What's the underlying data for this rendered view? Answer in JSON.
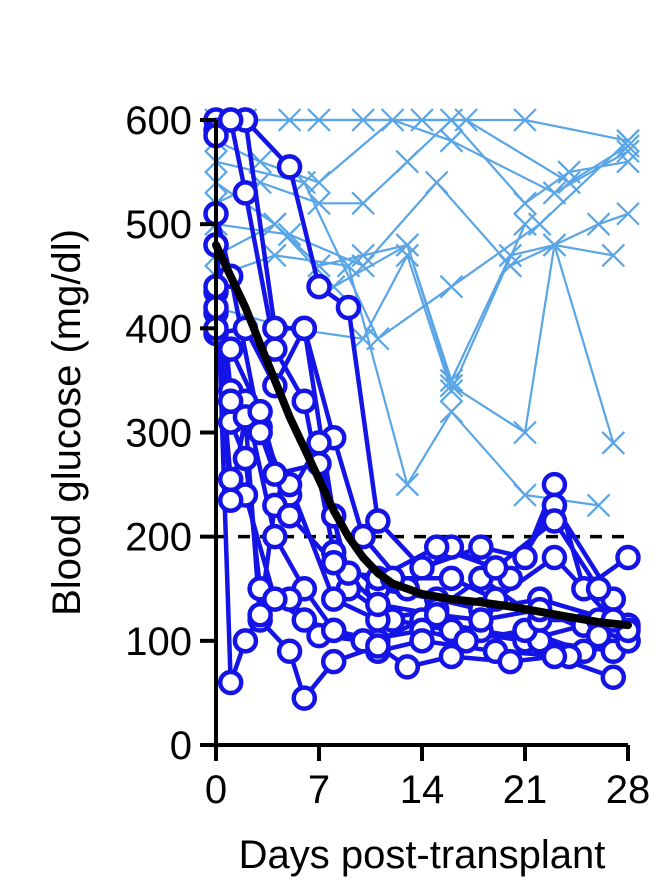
{
  "chart_data": {
    "type": "line",
    "xlabel": "Days post-transplant",
    "ylabel": "Blood glucose (mg/dl)",
    "xlim": [
      0,
      28
    ],
    "ylim": [
      0,
      600
    ],
    "xticks": [
      0,
      7,
      14,
      21,
      28
    ],
    "yticks": [
      0,
      100,
      200,
      300,
      400,
      500,
      600
    ],
    "threshold": 200,
    "colors": {
      "non_reversed": "#5aa5e6",
      "reversed": "#1414e6",
      "mean": "#000000",
      "threshold": "#000000"
    },
    "non_reversed_series": [
      [
        [
          0,
          600
        ],
        [
          7,
          600
        ],
        [
          14,
          600
        ],
        [
          21,
          600
        ],
        [
          28,
          580
        ]
      ],
      [
        [
          0,
          590
        ],
        [
          2,
          600
        ],
        [
          5,
          600
        ],
        [
          10,
          600
        ],
        [
          17,
          600
        ],
        [
          24,
          540
        ],
        [
          28,
          575
        ]
      ],
      [
        [
          0,
          580
        ],
        [
          3,
          560
        ],
        [
          7,
          540
        ],
        [
          12,
          600
        ],
        [
          16,
          580
        ],
        [
          23,
          530
        ],
        [
          28,
          570
        ]
      ],
      [
        [
          0,
          520
        ],
        [
          3,
          540
        ],
        [
          7,
          520
        ],
        [
          10,
          520
        ],
        [
          13,
          560
        ],
        [
          16,
          600
        ],
        [
          21,
          520
        ],
        [
          24,
          550
        ],
        [
          28,
          560
        ]
      ],
      [
        [
          0,
          470
        ],
        [
          4,
          500
        ],
        [
          7,
          460
        ],
        [
          10,
          470
        ],
        [
          13,
          480
        ],
        [
          16,
          350
        ],
        [
          20,
          470
        ],
        [
          23,
          480
        ],
        [
          27,
          470
        ]
      ],
      [
        [
          0,
          500
        ],
        [
          5,
          490
        ],
        [
          10,
          460
        ],
        [
          15,
          540
        ],
        [
          20,
          460
        ],
        [
          26,
          500
        ],
        [
          28,
          510
        ]
      ],
      [
        [
          0,
          540
        ],
        [
          4,
          500
        ],
        [
          8,
          440
        ],
        [
          13,
          480
        ],
        [
          16,
          345
        ],
        [
          21,
          300
        ],
        [
          23,
          480
        ],
        [
          27,
          290
        ]
      ],
      [
        [
          0,
          450
        ],
        [
          4,
          470
        ],
        [
          9,
          460
        ],
        [
          13,
          250
        ],
        [
          16,
          320
        ],
        [
          21,
          240
        ],
        [
          26,
          230
        ]
      ],
      [
        [
          0,
          420
        ],
        [
          5,
          400
        ],
        [
          10,
          390
        ],
        [
          13,
          470
        ],
        [
          16,
          340
        ],
        [
          21,
          500
        ]
      ],
      [
        [
          0,
          560
        ],
        [
          6,
          540
        ],
        [
          11,
          390
        ],
        [
          16,
          440
        ],
        [
          22,
          500
        ],
        [
          28,
          580
        ]
      ]
    ],
    "reversed_series": [
      [
        [
          0,
          600
        ],
        [
          1,
          600
        ],
        [
          2,
          600
        ],
        [
          5,
          555
        ],
        [
          7,
          440
        ],
        [
          9,
          420
        ],
        [
          11,
          215
        ],
        [
          14,
          170
        ],
        [
          18,
          190
        ],
        [
          21,
          180
        ],
        [
          23,
          250
        ],
        [
          25,
          150
        ],
        [
          28,
          180
        ]
      ],
      [
        [
          0,
          590
        ],
        [
          2,
          600
        ],
        [
          4,
          400
        ],
        [
          6,
          400
        ],
        [
          8,
          295
        ],
        [
          10,
          200
        ],
        [
          13,
          150
        ],
        [
          16,
          190
        ],
        [
          20,
          160
        ],
        [
          23,
          230
        ],
        [
          27,
          140
        ]
      ],
      [
        [
          0,
          585
        ],
        [
          1,
          600
        ],
        [
          2,
          530
        ],
        [
          4,
          380
        ],
        [
          6,
          330
        ],
        [
          8,
          185
        ],
        [
          11,
          150
        ],
        [
          15,
          140
        ],
        [
          18,
          130
        ],
        [
          22,
          140
        ],
        [
          28,
          115
        ]
      ],
      [
        [
          0,
          510
        ],
        [
          1,
          450
        ],
        [
          3,
          305
        ],
        [
          5,
          240
        ],
        [
          7,
          290
        ],
        [
          9,
          150
        ],
        [
          12,
          120
        ],
        [
          16,
          110
        ],
        [
          21,
          100
        ],
        [
          25,
          115
        ],
        [
          28,
          100
        ]
      ],
      [
        [
          0,
          480
        ],
        [
          1,
          340
        ],
        [
          2,
          330
        ],
        [
          4,
          200
        ],
        [
          6,
          150
        ],
        [
          8,
          110
        ],
        [
          11,
          100
        ],
        [
          14,
          120
        ],
        [
          18,
          110
        ],
        [
          22,
          100
        ],
        [
          27,
          90
        ]
      ],
      [
        [
          0,
          435
        ],
        [
          1,
          310
        ],
        [
          2,
          275
        ],
        [
          3,
          150
        ],
        [
          5,
          140
        ],
        [
          7,
          105
        ],
        [
          10,
          100
        ],
        [
          14,
          110
        ],
        [
          17,
          100
        ],
        [
          21,
          110
        ],
        [
          25,
          90
        ],
        [
          28,
          100
        ]
      ],
      [
        [
          0,
          415
        ],
        [
          1,
          255
        ],
        [
          2,
          240
        ],
        [
          4,
          140
        ],
        [
          6,
          120
        ],
        [
          8,
          110
        ],
        [
          11,
          90
        ],
        [
          14,
          100
        ],
        [
          19,
          90
        ],
        [
          24,
          85
        ],
        [
          28,
          100
        ]
      ],
      [
        [
          0,
          420
        ],
        [
          1,
          235
        ],
        [
          2,
          315
        ],
        [
          3,
          120
        ],
        [
          5,
          90
        ],
        [
          6,
          45
        ],
        [
          8,
          80
        ],
        [
          11,
          95
        ],
        [
          13,
          75
        ],
        [
          16,
          85
        ],
        [
          20,
          80
        ],
        [
          23,
          85
        ],
        [
          27,
          65
        ]
      ],
      [
        [
          0,
          480
        ],
        [
          1,
          60
        ],
        [
          2,
          100
        ],
        [
          3,
          125
        ],
        [
          4,
          230
        ],
        [
          5,
          250
        ],
        [
          8,
          140
        ],
        [
          11,
          120
        ],
        [
          15,
          130
        ],
        [
          18,
          160
        ],
        [
          22,
          120
        ],
        [
          26,
          120
        ]
      ],
      [
        [
          0,
          395
        ],
        [
          2,
          400
        ],
        [
          4,
          345
        ],
        [
          6,
          400
        ],
        [
          8,
          220
        ],
        [
          11,
          160
        ],
        [
          15,
          190
        ],
        [
          19,
          170
        ],
        [
          23,
          215
        ],
        [
          26,
          150
        ],
        [
          28,
          110
        ]
      ],
      [
        [
          0,
          440
        ],
        [
          1,
          330
        ],
        [
          3,
          300
        ],
        [
          4,
          260
        ],
        [
          7,
          270
        ],
        [
          9,
          165
        ],
        [
          12,
          160
        ],
        [
          16,
          160
        ],
        [
          19,
          140
        ],
        [
          23,
          180
        ],
        [
          27,
          120
        ]
      ],
      [
        [
          0,
          400
        ],
        [
          1,
          380
        ],
        [
          3,
          320
        ],
        [
          5,
          220
        ],
        [
          8,
          175
        ],
        [
          11,
          135
        ],
        [
          15,
          125
        ],
        [
          18,
          120
        ],
        [
          22,
          130
        ],
        [
          26,
          105
        ]
      ]
    ],
    "mean_curve": [
      [
        0,
        480
      ],
      [
        1,
        450
      ],
      [
        2,
        420
      ],
      [
        3,
        385
      ],
      [
        4,
        350
      ],
      [
        5,
        315
      ],
      [
        6,
        285
      ],
      [
        7,
        255
      ],
      [
        8,
        225
      ],
      [
        9,
        200
      ],
      [
        10,
        180
      ],
      [
        11,
        165
      ],
      [
        12,
        155
      ],
      [
        14,
        145
      ],
      [
        16,
        140
      ],
      [
        18,
        137
      ],
      [
        20,
        133
      ],
      [
        22,
        128
      ],
      [
        24,
        123
      ],
      [
        26,
        118
      ],
      [
        28,
        115
      ]
    ]
  }
}
